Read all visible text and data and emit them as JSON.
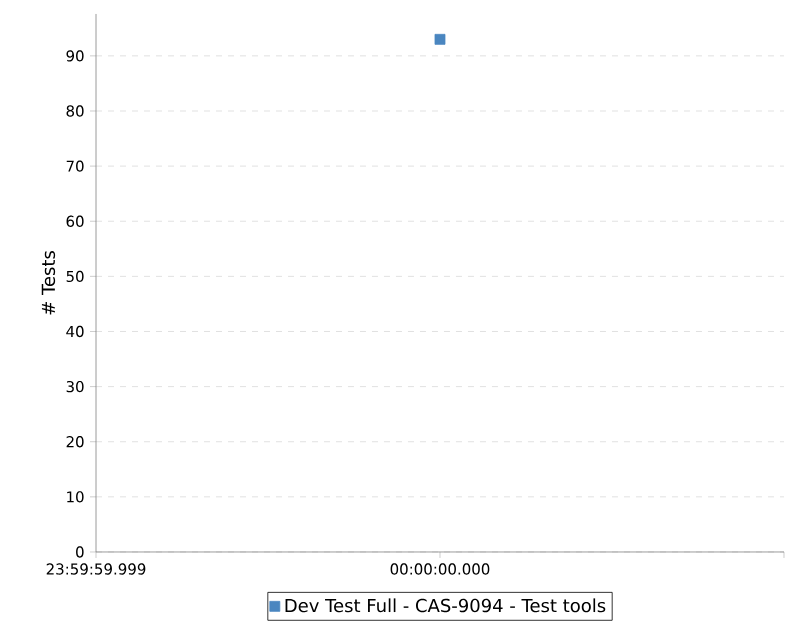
{
  "chart_data": {
    "type": "scatter",
    "ylabel": "# Tests",
    "categories": [
      "23:59:59.999",
      "00:00:00.000",
      null
    ],
    "series": [
      {
        "name": "Dev Test Full - CAS-9094 - Test tools",
        "color": "#4a86c0",
        "values": [
          null,
          93,
          null
        ]
      }
    ],
    "ylim": [
      0,
      97.6
    ],
    "yticks": [
      0,
      10,
      20,
      30,
      40,
      50,
      60,
      70,
      80,
      90
    ],
    "grid": "y",
    "legend": "bottom",
    "marker": "square"
  }
}
